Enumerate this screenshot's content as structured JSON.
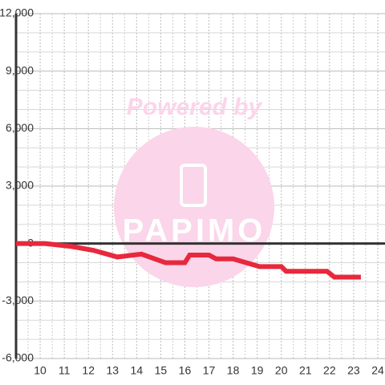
{
  "chart_data": {
    "type": "line",
    "watermark": {
      "top": "Powered by",
      "bottom": "PAPIMO"
    },
    "x": [
      9,
      10.2,
      11.3,
      12.2,
      13.2,
      14.2,
      15.2,
      16.0,
      16.2,
      17.0,
      17.3,
      18.0,
      19.1,
      20.0,
      20.2,
      21.9,
      22.2,
      23.3
    ],
    "series": [
      {
        "color": "#e8283c",
        "values": [
          0,
          0,
          -150,
          -350,
          -700,
          -550,
          -1000,
          -1000,
          -600,
          -600,
          -800,
          -800,
          -1200,
          -1200,
          -1450,
          -1450,
          -1750,
          -1750
        ]
      }
    ],
    "xlim": [
      9,
      24.3
    ],
    "ylim": [
      -6000,
      12000
    ],
    "xticks": [
      10,
      11,
      12,
      13,
      14,
      15,
      16,
      17,
      18,
      19,
      20,
      21,
      22,
      23,
      24
    ],
    "yticks": [
      {
        "value": -6000,
        "label": "-6,000"
      },
      {
        "value": -3000,
        "label": "-3,000"
      },
      0,
      {
        "value": 3000,
        "label": "3,000"
      },
      {
        "value": 6000,
        "label": "6,000"
      },
      {
        "value": 9000,
        "label": "9,000"
      },
      {
        "value": 12000,
        "label": "12,000"
      }
    ],
    "grid": true
  }
}
